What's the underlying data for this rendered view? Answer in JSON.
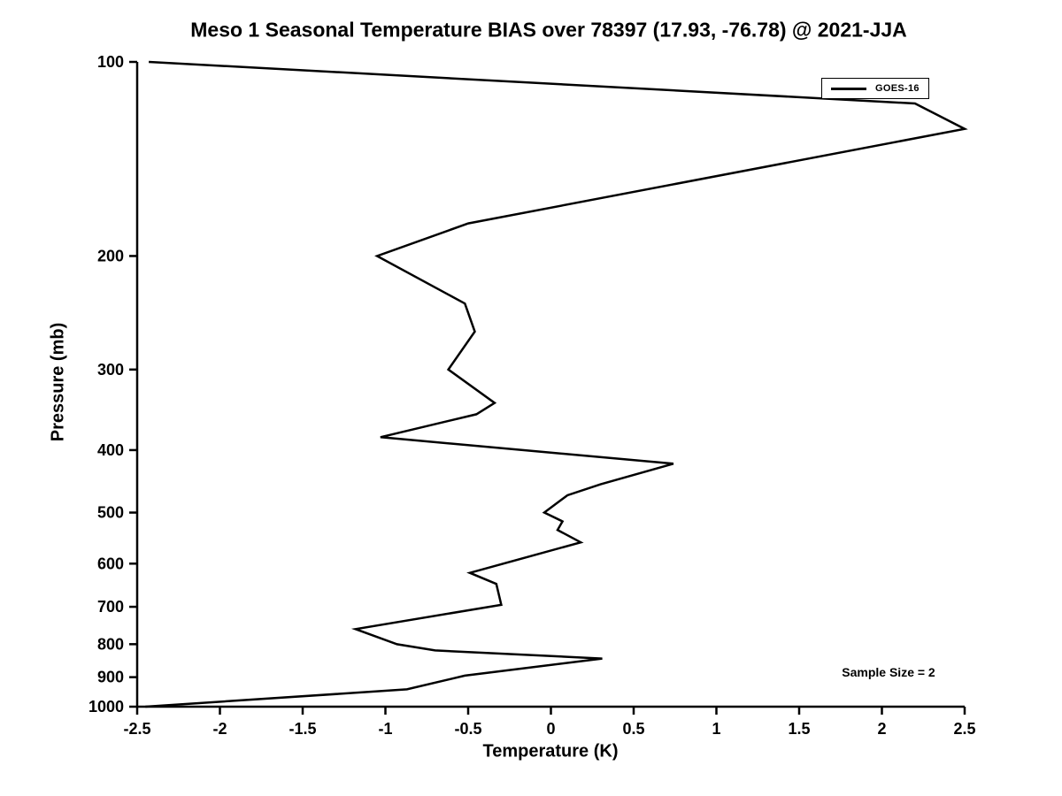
{
  "title": "Meso 1 Seasonal Temperature BIAS over 78397 (17.93, -76.78) @ 2021-JJA",
  "legend": {
    "label": "GOES-16"
  },
  "annotation_text": "Sample Size = 2",
  "axes": {
    "xlabel": "Temperature (K)",
    "ylabel": "Pressure (mb)"
  },
  "chart_data": {
    "type": "line",
    "title": "Meso 1 Seasonal Temperature BIAS over 78397 (17.93, -76.78) @ 2021-JJA",
    "xlabel": "Temperature (K)",
    "ylabel": "Pressure (mb)",
    "xlim": [
      -2.5,
      2.5
    ],
    "ylim": [
      100,
      1000
    ],
    "y_scale": "log",
    "y_inverted": true,
    "grid": false,
    "legend_position": "upper right",
    "line_color": "#000000",
    "xticks": [
      -2.5,
      -2,
      -1.5,
      -1,
      -0.5,
      0,
      0.5,
      1,
      1.5,
      2,
      2.5
    ],
    "xtick_labels": [
      "-2.5",
      "-2",
      "-1.5",
      "-1",
      "-0.5",
      "0",
      "0.5",
      "1",
      "1.5",
      "2",
      "2.5"
    ],
    "yticks": [
      100,
      200,
      300,
      400,
      500,
      600,
      700,
      800,
      900,
      1000
    ],
    "ytick_labels": [
      "100",
      "200",
      "300",
      "400",
      "500",
      "600",
      "700",
      "800",
      "900",
      "1000"
    ],
    "series": [
      {
        "name": "GOES-16",
        "color": "#000000",
        "points_format": [
          "temperature_K",
          "pressure_mb"
        ],
        "points": [
          [
            -2.43,
            100
          ],
          [
            2.2,
            116
          ],
          [
            2.5,
            127
          ],
          [
            -0.5,
            178
          ],
          [
            -1.05,
            200
          ],
          [
            -0.52,
            237
          ],
          [
            -0.46,
            262
          ],
          [
            -0.62,
            300
          ],
          [
            -0.34,
            338
          ],
          [
            -0.45,
            352
          ],
          [
            -1.03,
            382
          ],
          [
            0.74,
            420
          ],
          [
            0.3,
            452
          ],
          [
            0.1,
            470
          ],
          [
            -0.04,
            500
          ],
          [
            0.07,
            516
          ],
          [
            0.04,
            532
          ],
          [
            0.18,
            556
          ],
          [
            -0.49,
            620
          ],
          [
            -0.33,
            645
          ],
          [
            -0.3,
            695
          ],
          [
            -1.18,
            758
          ],
          [
            -0.93,
            800
          ],
          [
            -0.7,
            818
          ],
          [
            0.31,
            842
          ],
          [
            -0.52,
            895
          ],
          [
            -0.87,
            940
          ],
          [
            -2.45,
            1000
          ]
        ]
      }
    ],
    "annotations": [
      {
        "text": "Sample Size = 2",
        "x": 2.04,
        "y": 880
      }
    ]
  }
}
